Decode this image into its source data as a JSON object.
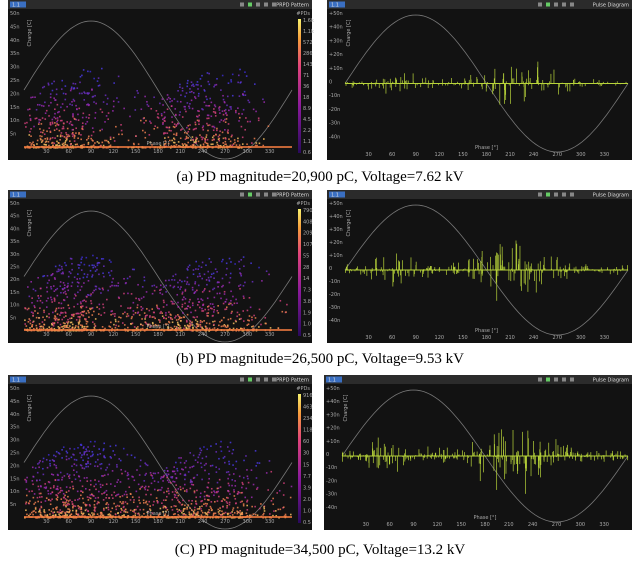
{
  "figure": {
    "rows": [
      {
        "caption": "(a) PD magnitude=20,900 pC, Voltage=7.62 kV",
        "prpd": {
          "tab": "1.1",
          "title": "PRPD Pattern",
          "y_axis": "Charge [C]",
          "x_axis": "Phase [°]",
          "scale_title": "#PDs",
          "yticks": [
            "50n",
            "45n",
            "40n",
            "35n",
            "30n",
            "25n",
            "20n",
            "15n",
            "10n",
            "5n"
          ],
          "xticks": [
            "30",
            "60",
            "90",
            "120",
            "150",
            "180",
            "210",
            "240",
            "270",
            "300",
            "330"
          ],
          "scale_ticks": [
            "1.6k",
            "1.1k",
            "572",
            "286",
            "143",
            "71",
            "36",
            "18",
            "8.9",
            "4.5",
            "2.2",
            "1.1",
            "0.6"
          ]
        },
        "pulse": {
          "tab": "1.1",
          "title": "Pulse Diagram",
          "y_axis": "Charge [C]",
          "x_axis": "Phase [°]",
          "yticks": [
            "+50n",
            "+40n",
            "+30n",
            "+20n",
            "+10n",
            "0",
            "-10n",
            "-20n",
            "-30n",
            "-40n"
          ],
          "xticks": [
            "30",
            "60",
            "90",
            "120",
            "150",
            "180",
            "210",
            "240",
            "270",
            "300",
            "330"
          ]
        }
      },
      {
        "caption": "(b) PD magnitude=26,500 pC, Voltage=9.53 kV",
        "prpd": {
          "tab": "1.1",
          "title": "PRPD Pattern",
          "y_axis": "Charge [C]",
          "x_axis": "Phase [°]",
          "scale_title": "#PDs",
          "yticks": [
            "50n",
            "45n",
            "40n",
            "35n",
            "30n",
            "25n",
            "20n",
            "15n",
            "10n",
            "5n"
          ],
          "xticks": [
            "30",
            "60",
            "90",
            "120",
            "150",
            "180",
            "210",
            "240",
            "270",
            "300",
            "330"
          ],
          "scale_ticks": [
            "790",
            "408",
            "209",
            "107",
            "55",
            "28",
            "14",
            "7.3",
            "3.8",
            "1.9",
            "1.0",
            "0.5"
          ]
        },
        "pulse": {
          "tab": "1.1",
          "title": "Pulse Diagram",
          "y_axis": "Charge [C]",
          "x_axis": "Phase [°]",
          "yticks": [
            "+50n",
            "+40n",
            "+30n",
            "+20n",
            "+10n",
            "0",
            "-10n",
            "-20n",
            "-30n",
            "-40n"
          ],
          "xticks": [
            "30",
            "60",
            "90",
            "120",
            "150",
            "180",
            "210",
            "240",
            "270",
            "300",
            "330"
          ]
        }
      },
      {
        "caption": "(C) PD magnitude=34,500 pC, Voltage=13.2 kV",
        "prpd": {
          "tab": "1.1",
          "title": "PRPD Pattern",
          "y_axis": "Charge [C]",
          "x_axis": "Phase [°]",
          "scale_title": "#PDs",
          "yticks": [
            "50n",
            "45n",
            "40n",
            "35n",
            "30n",
            "25n",
            "20n",
            "15n",
            "10n",
            "5n"
          ],
          "xticks": [
            "30",
            "60",
            "90",
            "120",
            "150",
            "180",
            "210",
            "240",
            "270",
            "300",
            "330"
          ],
          "scale_ticks": [
            "916",
            "463",
            "234",
            "118",
            "60",
            "30",
            "15",
            "7.7",
            "3.9",
            "2.0",
            "1.0",
            "0.5"
          ]
        },
        "pulse": {
          "tab": "1.1",
          "title": "Pulse Diagram",
          "y_axis": "Charge [C]",
          "x_axis": "Phase [°]",
          "yticks": [
            "+50n",
            "+40n",
            "+30n",
            "+20n",
            "+10n",
            "0",
            "-10n",
            "-20n",
            "-30n",
            "-40n"
          ],
          "xticks": [
            "30",
            "60",
            "90",
            "120",
            "150",
            "180",
            "210",
            "240",
            "270",
            "300",
            "330"
          ]
        }
      }
    ]
  }
}
